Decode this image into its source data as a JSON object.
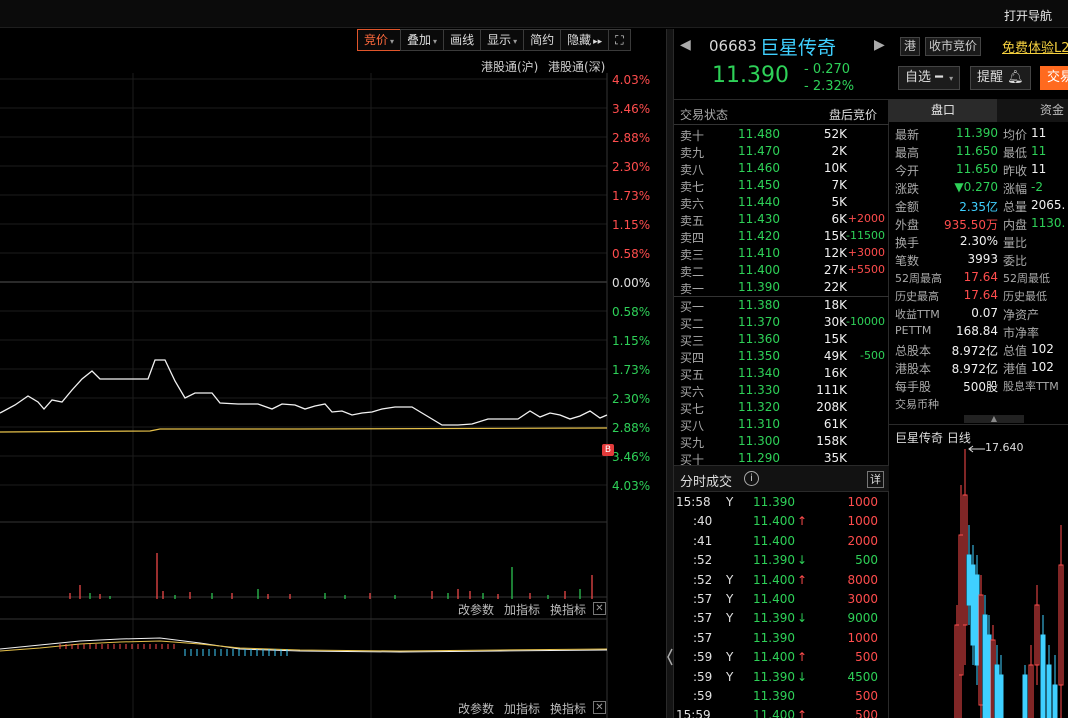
{
  "topbar": {
    "nav_label": "打开导航",
    "extra": "ℹ"
  },
  "toolbar": [
    {
      "label": "竞价",
      "caret": true,
      "active": true
    },
    {
      "label": "叠加",
      "caret": true
    },
    {
      "label": "画线",
      "caret": false
    },
    {
      "label": "显示",
      "caret": true
    },
    {
      "label": "简约",
      "caret": false
    },
    {
      "label": "隐藏",
      "caret": false,
      "suffix": "▸▸"
    }
  ],
  "connect": {
    "sh": "港股通(沪)",
    "sz": "港股通(深)"
  },
  "y_axis_labels": [
    {
      "text": "4.03%",
      "color": "red"
    },
    {
      "text": "3.46%",
      "color": "red"
    },
    {
      "text": "2.88%",
      "color": "red"
    },
    {
      "text": "2.30%",
      "color": "red"
    },
    {
      "text": "1.73%",
      "color": "red"
    },
    {
      "text": "1.15%",
      "color": "red"
    },
    {
      "text": "0.58%",
      "color": "red"
    },
    {
      "text": "0.00%",
      "color": "white"
    },
    {
      "text": "0.58%",
      "color": "green"
    },
    {
      "text": "1.15%",
      "color": "green"
    },
    {
      "text": "1.73%",
      "color": "green"
    },
    {
      "text": "2.30%",
      "color": "green"
    },
    {
      "text": "2.88%",
      "color": "green"
    },
    {
      "text": "3.46%",
      "color": "green"
    },
    {
      "text": "4.03%",
      "color": "green"
    }
  ],
  "b_marker": "B",
  "subchart_buttons": {
    "params": "改参数",
    "add": "加指标",
    "swap": "换指标",
    "close": "✕"
  },
  "stock": {
    "code": "06683",
    "name": "巨星传奇",
    "market_badge": "港",
    "auction_badge": "收市竞价",
    "l2_link": "免费体验L2",
    "price": "11.390",
    "change": "- 0.270",
    "change_pct": "- 2.32%",
    "watch_btn": "自选",
    "alert_btn": "提醒",
    "trade_btn": "交易"
  },
  "orderbook": {
    "header_left": "交易状态",
    "header_right": "盘后竞价",
    "asks": [
      {
        "label": "卖十",
        "price": "11.480",
        "vol": "52K",
        "delta": ""
      },
      {
        "label": "卖九",
        "price": "11.470",
        "vol": "2K",
        "delta": ""
      },
      {
        "label": "卖八",
        "price": "11.460",
        "vol": "10K",
        "delta": ""
      },
      {
        "label": "卖七",
        "price": "11.450",
        "vol": "7K",
        "delta": ""
      },
      {
        "label": "卖六",
        "price": "11.440",
        "vol": "5K",
        "delta": ""
      },
      {
        "label": "卖五",
        "price": "11.430",
        "vol": "6K",
        "delta": "+2000"
      },
      {
        "label": "卖四",
        "price": "11.420",
        "vol": "15K",
        "delta": "-11500"
      },
      {
        "label": "卖三",
        "price": "11.410",
        "vol": "12K",
        "delta": "+3000"
      },
      {
        "label": "卖二",
        "price": "11.400",
        "vol": "27K",
        "delta": "+5500"
      },
      {
        "label": "卖一",
        "price": "11.390",
        "vol": "22K",
        "delta": ""
      }
    ],
    "bids": [
      {
        "label": "买一",
        "price": "11.380",
        "vol": "18K",
        "delta": ""
      },
      {
        "label": "买二",
        "price": "11.370",
        "vol": "30K",
        "delta": "-10000"
      },
      {
        "label": "买三",
        "price": "11.360",
        "vol": "15K",
        "delta": ""
      },
      {
        "label": "买四",
        "price": "11.350",
        "vol": "49K",
        "delta": "-500"
      },
      {
        "label": "买五",
        "price": "11.340",
        "vol": "16K",
        "delta": ""
      },
      {
        "label": "买六",
        "price": "11.330",
        "vol": "111K",
        "delta": ""
      },
      {
        "label": "买七",
        "price": "11.320",
        "vol": "208K",
        "delta": ""
      },
      {
        "label": "买八",
        "price": "11.310",
        "vol": "61K",
        "delta": ""
      },
      {
        "label": "买九",
        "price": "11.300",
        "vol": "158K",
        "delta": ""
      },
      {
        "label": "买十",
        "price": "11.290",
        "vol": "35K",
        "delta": ""
      }
    ]
  },
  "trades": {
    "title": "分时成交",
    "info_icon": "i",
    "detail_btn": "详",
    "rows": [
      {
        "time": "15:58",
        "flag": "Y",
        "price": "11.390",
        "arrow": "",
        "vol": "1000",
        "pcolor": "green"
      },
      {
        "time": ":40",
        "flag": "",
        "price": "11.400",
        "arrow": "↑",
        "vol": "1000",
        "pcolor": "green"
      },
      {
        "time": ":41",
        "flag": "",
        "price": "11.400",
        "arrow": "",
        "vol": "2000",
        "pcolor": "green"
      },
      {
        "time": ":52",
        "flag": "",
        "price": "11.390",
        "arrow": "↓",
        "vol": "500",
        "pcolor": "green"
      },
      {
        "time": ":52",
        "flag": "Y",
        "price": "11.400",
        "arrow": "↑",
        "vol": "8000",
        "pcolor": "green"
      },
      {
        "time": ":57",
        "flag": "Y",
        "price": "11.400",
        "arrow": "",
        "vol": "3000",
        "pcolor": "green"
      },
      {
        "time": ":57",
        "flag": "Y",
        "price": "11.390",
        "arrow": "↓",
        "vol": "9000",
        "pcolor": "green"
      },
      {
        "time": ":57",
        "flag": "",
        "price": "11.390",
        "arrow": "",
        "vol": "1000",
        "pcolor": "green"
      },
      {
        "time": ":59",
        "flag": "Y",
        "price": "11.400",
        "arrow": "↑",
        "vol": "500",
        "pcolor": "green"
      },
      {
        "time": ":59",
        "flag": "Y",
        "price": "11.390",
        "arrow": "↓",
        "vol": "4500",
        "pcolor": "green"
      },
      {
        "time": ":59",
        "flag": "",
        "price": "11.390",
        "arrow": "",
        "vol": "500",
        "pcolor": "green"
      },
      {
        "time": "15:59",
        "flag": "",
        "price": "11.400",
        "arrow": "↑",
        "vol": "500",
        "pcolor": "green"
      }
    ]
  },
  "stats": {
    "tab_active": "盘口",
    "tab_other": "资金",
    "rows": [
      {
        "l1": "最新",
        "v1": "11.390",
        "c1": "green",
        "l2": "均价",
        "v2": "11",
        "c2": "white"
      },
      {
        "l1": "最高",
        "v1": "11.650",
        "c1": "green",
        "l2": "最低",
        "v2": "11",
        "c2": "green"
      },
      {
        "l1": "今开",
        "v1": "11.650",
        "c1": "green",
        "l2": "昨收",
        "v2": "11",
        "c2": "white"
      },
      {
        "l1": "涨跌",
        "v1": "▼0.270",
        "c1": "green",
        "l2": "涨幅",
        "v2": "-2",
        "c2": "green"
      },
      {
        "l1": "金额",
        "v1": "2.35亿",
        "c1": "cyan",
        "l2": "总量",
        "v2": "2065.",
        "c2": "white"
      },
      {
        "l1": "外盘",
        "v1": "935.50万",
        "c1": "red",
        "l2": "内盘",
        "v2": "1130.",
        "c2": "green"
      },
      {
        "l1": "换手",
        "v1": "2.30%",
        "c1": "white",
        "l2": "量比",
        "v2": "",
        "c2": "white"
      },
      {
        "l1": "笔数",
        "v1": "3993",
        "c1": "white",
        "l2": "委比",
        "v2": "",
        "c2": "white"
      },
      {
        "l1": "52周最高",
        "v1": "17.64",
        "c1": "red",
        "l2": "52周最低",
        "v2": "",
        "c2": "white"
      },
      {
        "l1": "历史最高",
        "v1": "17.64",
        "c1": "red",
        "l2": "历史最低",
        "v2": "",
        "c2": "white"
      },
      {
        "l1": "收益TTM",
        "v1": "0.07",
        "c1": "white",
        "l2": "净资产",
        "v2": "",
        "c2": "white"
      },
      {
        "l1": "PETTM",
        "v1": "168.84",
        "c1": "white",
        "l2": "市净率",
        "v2": "",
        "c2": "white"
      },
      {
        "l1": "总股本",
        "v1": "8.972亿",
        "c1": "white",
        "l2": "总值",
        "v2": "102",
        "c2": "white"
      },
      {
        "l1": "港股本",
        "v1": "8.972亿",
        "c1": "white",
        "l2": "港值",
        "v2": "102",
        "c2": "white"
      },
      {
        "l1": "每手股",
        "v1": "500股",
        "c1": "white",
        "l2": "股息率TTM",
        "v2": "",
        "c2": "white"
      },
      {
        "l1": "交易币种",
        "v1": "",
        "c1": "white",
        "l2": "",
        "v2": "",
        "c2": "white"
      }
    ]
  },
  "daily": {
    "title": "巨星传奇 日线",
    "high_label": "17.640"
  }
}
